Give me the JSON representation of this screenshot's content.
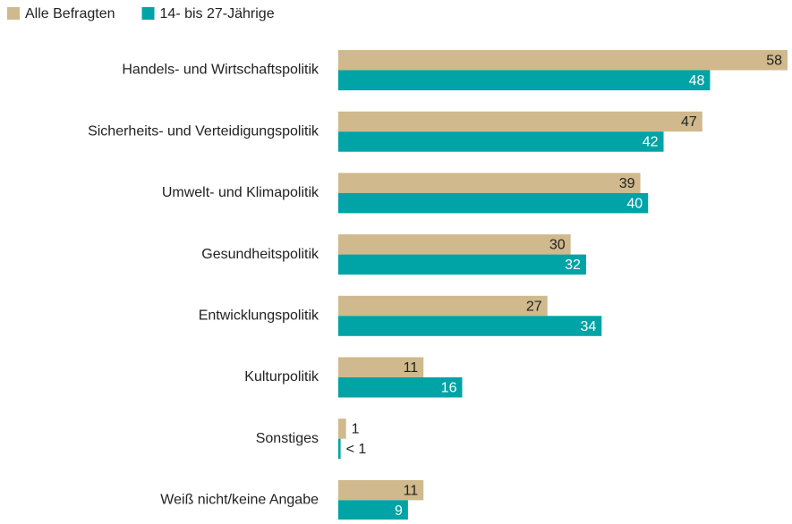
{
  "chart_data": {
    "type": "bar",
    "orientation": "horizontal",
    "categories": [
      "Handels- und Wirtschaftspolitik",
      "Sicherheits- und Verteidigungspolitik",
      "Umwelt- und Klimapolitik",
      "Gesundheitspolitik",
      "Entwicklungspolitik",
      "Kulturpolitik",
      "Sonstiges",
      "Weiß nicht/keine Angabe"
    ],
    "series": [
      {
        "name": "Alle Befragten",
        "color": "#cfb98d",
        "values": [
          58,
          47,
          39,
          30,
          27,
          11,
          1,
          11
        ]
      },
      {
        "name": "14- bis 27-Jährige",
        "color": "#00a3a6",
        "values": [
          48,
          42,
          40,
          32,
          34,
          16,
          0.3,
          9
        ],
        "value_labels": [
          "48",
          "42",
          "40",
          "32",
          "34",
          "16",
          "< 1",
          "9"
        ]
      }
    ],
    "legend": "top-left"
  }
}
